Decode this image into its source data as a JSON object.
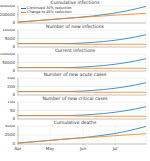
{
  "chart_data": [
    {
      "type": "line",
      "title": "Cumulative infections",
      "legend": "upper left",
      "grid": true,
      "tick_labels": "y",
      "x": [
        0,
        10,
        20,
        30,
        40,
        50,
        60,
        70,
        80,
        90,
        100,
        110,
        120
      ],
      "xlim": [
        0,
        120
      ],
      "xticks": [
        {
          "value": 0,
          "label": "Apr"
        },
        {
          "value": 30,
          "label": "May"
        },
        {
          "value": 61,
          "label": "Jun"
        },
        {
          "value": 91,
          "label": "Jul"
        }
      ],
      "ylim": [
        0,
        400000
      ],
      "yticks": [
        0,
        200000,
        400000
      ],
      "series": [
        {
          "name": "Continued 30% reduction",
          "color": "#1f77b4",
          "values": [
            20000,
            40000,
            60000,
            80000,
            100000,
            120000,
            140000,
            165000,
            195000,
            230000,
            275000,
            330000,
            390000
          ]
        },
        {
          "name": "Change to 45% reduction",
          "color": "#ff7f0e",
          "values": [
            20000,
            40000,
            60000,
            80000,
            100000,
            118000,
            134000,
            150000,
            166000,
            182000,
            198000,
            214000,
            230000
          ]
        }
      ]
    },
    {
      "type": "line",
      "title": "Number of new infections",
      "grid": true,
      "tick_labels": "y",
      "x": [
        0,
        10,
        20,
        30,
        40,
        50,
        60,
        70,
        80,
        90,
        100,
        110,
        120
      ],
      "xlim": [
        0,
        120
      ],
      "xticks": [
        {
          "value": 0,
          "label": "Apr"
        },
        {
          "value": 30,
          "label": "May"
        },
        {
          "value": 61,
          "label": "Jun"
        },
        {
          "value": 91,
          "label": "Jul"
        }
      ],
      "ylim": [
        0,
        10000
      ],
      "yticks": [
        0,
        5000,
        10000
      ],
      "series": [
        {
          "name": "Continued 30% reduction",
          "color": "#1f77b4",
          "values": [
            2000,
            2000,
            2000,
            2000,
            2000,
            2100,
            2300,
            2700,
            3200,
            3900,
            4800,
            5900,
            7200
          ]
        },
        {
          "name": "Change to 45% reduction",
          "color": "#ff7f0e",
          "values": [
            2000,
            2000,
            2000,
            2000,
            2000,
            1800,
            1600,
            1600,
            1600,
            1600,
            1600,
            1600,
            1600
          ]
        }
      ]
    },
    {
      "type": "line",
      "title": "Current infections",
      "grid": true,
      "tick_labels": "y",
      "x": [
        0,
        10,
        20,
        30,
        40,
        50,
        60,
        70,
        80,
        90,
        100,
        110,
        120
      ],
      "xlim": [
        0,
        120
      ],
      "xticks": [
        {
          "value": 0,
          "label": "Apr"
        },
        {
          "value": 30,
          "label": "May"
        },
        {
          "value": 61,
          "label": "Jun"
        },
        {
          "value": 91,
          "label": "Jul"
        }
      ],
      "ylim": [
        0,
        100000
      ],
      "yticks": [
        0,
        50000,
        100000
      ],
      "series": [
        {
          "name": "Continued 30% reduction",
          "color": "#1f77b4",
          "values": [
            20000,
            20000,
            20000,
            20000,
            20000,
            21000,
            23000,
            27000,
            32000,
            39000,
            48000,
            59000,
            72000
          ]
        },
        {
          "name": "Change to 45% reduction",
          "color": "#ff7f0e",
          "values": [
            20000,
            20000,
            20000,
            20000,
            20000,
            18000,
            16000,
            16000,
            16000,
            16000,
            16000,
            16000,
            16000
          ]
        }
      ]
    },
    {
      "type": "line",
      "title": "Number of new acute cases",
      "grid": true,
      "tick_labels": "y",
      "x": [
        0,
        10,
        20,
        30,
        40,
        50,
        60,
        70,
        80,
        90,
        100,
        110,
        120
      ],
      "xlim": [
        0,
        120
      ],
      "xticks": [
        {
          "value": 0,
          "label": "Apr"
        },
        {
          "value": 30,
          "label": "May"
        },
        {
          "value": 61,
          "label": "Jun"
        },
        {
          "value": 91,
          "label": "Jul"
        }
      ],
      "ylim": [
        0,
        400
      ],
      "yticks": [
        0,
        200,
        400
      ],
      "series": [
        {
          "name": "Continued 30% reduction",
          "color": "#1f77b4",
          "values": [
            80,
            80,
            80,
            80,
            80,
            84,
            92,
            108,
            128,
            156,
            192,
            236,
            288
          ]
        },
        {
          "name": "Change to 45% reduction",
          "color": "#ff7f0e",
          "values": [
            80,
            80,
            80,
            80,
            80,
            76,
            68,
            64,
            64,
            64,
            64,
            64,
            64
          ]
        }
      ]
    },
    {
      "type": "line",
      "title": "Number of new critical cases",
      "grid": true,
      "tick_labels": "y",
      "x": [
        0,
        10,
        20,
        30,
        40,
        50,
        60,
        70,
        80,
        90,
        100,
        110,
        120
      ],
      "xlim": [
        0,
        120
      ],
      "xticks": [
        {
          "value": 0,
          "label": "Apr"
        },
        {
          "value": 30,
          "label": "May"
        },
        {
          "value": 61,
          "label": "Jun"
        },
        {
          "value": 91,
          "label": "Jul"
        }
      ],
      "ylim": [
        0,
        100
      ],
      "yticks": [
        0,
        50,
        100
      ],
      "series": [
        {
          "name": "Continued 30% reduction",
          "color": "#1f77b4",
          "values": [
            20,
            20,
            20,
            20,
            20,
            21,
            23,
            27,
            32,
            39,
            48,
            59,
            72
          ]
        },
        {
          "name": "Change to 45% reduction",
          "color": "#ff7f0e",
          "values": [
            20,
            20,
            20,
            20,
            20,
            19,
            17,
            16,
            16,
            16,
            16,
            16,
            16
          ]
        }
      ]
    },
    {
      "type": "line",
      "title": "Cumulative deaths",
      "grid": true,
      "x": [
        0,
        10,
        20,
        30,
        40,
        50,
        60,
        70,
        80,
        90,
        100,
        110,
        120
      ],
      "xlim": [
        0,
        120
      ],
      "xticks": [
        {
          "value": 0,
          "label": "Apr"
        },
        {
          "value": 30,
          "label": "May"
        },
        {
          "value": 61,
          "label": "Jun"
        },
        {
          "value": 91,
          "label": "Jul"
        }
      ],
      "ylim": [
        0,
        4000
      ],
      "yticks": [
        0,
        2000,
        4000
      ],
      "series": [
        {
          "name": "Continued 30% reduction",
          "color": "#1f77b4",
          "values": [
            200,
            400,
            600,
            800,
            1000,
            1200,
            1400,
            1650,
            1950,
            2300,
            2750,
            3300,
            3900
          ]
        },
        {
          "name": "Change to 45% reduction",
          "color": "#ff7f0e",
          "values": [
            200,
            400,
            600,
            800,
            1000,
            1180,
            1340,
            1500,
            1660,
            1820,
            1980,
            2140,
            2300
          ]
        }
      ]
    }
  ]
}
